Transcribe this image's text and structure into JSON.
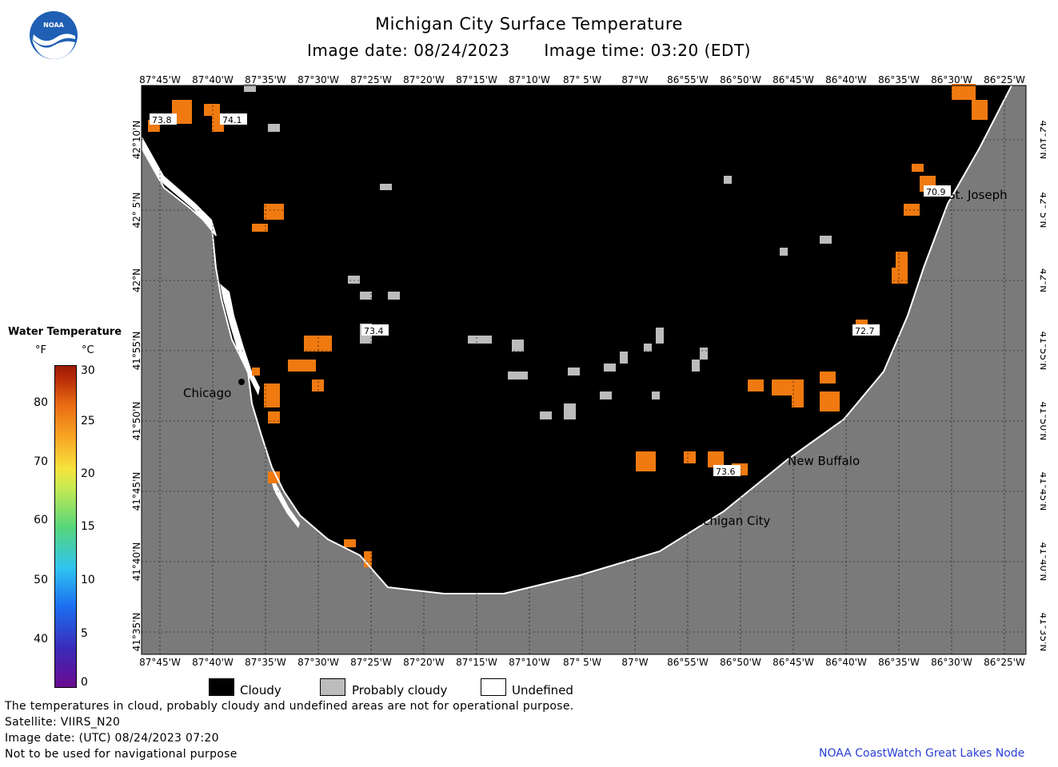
{
  "header": {
    "title": "Michigan City Surface Temperature",
    "image_date": "Image date: 08/24/2023",
    "image_time": "Image time: 03:20 (EDT)"
  },
  "logo": {
    "text": "NOAA",
    "icon": "noaa-logo"
  },
  "axes": {
    "lon_labels": [
      "87°45'W",
      "87°40'W",
      "87°35'W",
      "87°30'W",
      "87°25'W",
      "87°20'W",
      "87°15'W",
      "87°10'W",
      "87° 5'W",
      "87°W",
      "86°55'W",
      "86°50'W",
      "86°45'W",
      "86°40'W",
      "86°35'W",
      "86°30'W",
      "86°25'W"
    ],
    "lat_labels": [
      "42°10'N",
      "42° 5'N",
      "42°N",
      "41°55'N",
      "41°50'N",
      "41°45'N",
      "41°40'N",
      "41°35'N"
    ]
  },
  "places": [
    {
      "name": "Chicago"
    },
    {
      "name": "St. Joseph"
    },
    {
      "name": "New Buffalo"
    },
    {
      "name": "Michigan City"
    }
  ],
  "temperature_labels": [
    "73.8",
    "74.1",
    "73.4",
    "70.9",
    "72.7",
    "73.6"
  ],
  "legend": {
    "title": "Water Temperature",
    "unit_f": "°F",
    "unit_c": "°C",
    "f_ticks": [
      "80",
      "70",
      "60",
      "50",
      "40"
    ],
    "c_ticks": [
      "30",
      "25",
      "20",
      "15",
      "10",
      "5",
      "0"
    ]
  },
  "key": {
    "cloudy": "Cloudy",
    "probably_cloudy": "Probably cloudy",
    "undefined": "Undefined"
  },
  "colors": {
    "cloud": "#000000",
    "probably_cloudy": "#bcbcbc",
    "land": "#7a7a7a",
    "warm_water": "#f07a10"
  },
  "footer": {
    "note": "The temperatures in cloud, probably cloudy and undefined areas are not for operational purpose.",
    "satellite": "Satellite: VIIRS_N20",
    "utc_date": "Image date: (UTC) 08/24/2023  07:20",
    "nav_warning": "Not to be used for navigational purpose",
    "credit": "NOAA CoastWatch Great Lakes Node"
  }
}
